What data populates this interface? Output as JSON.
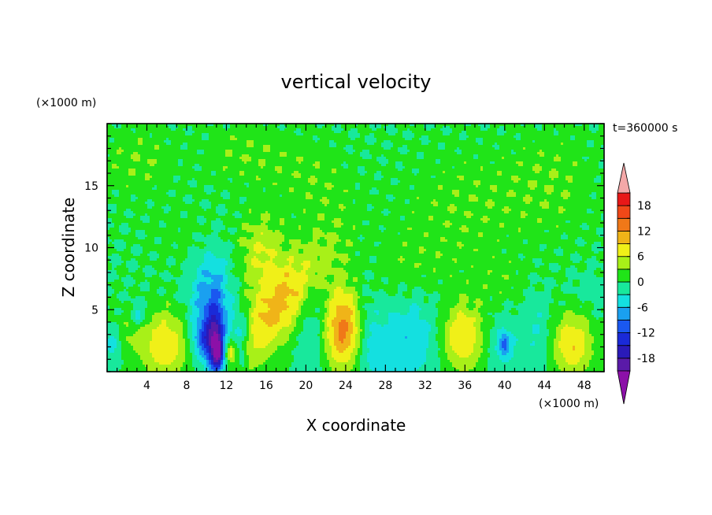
{
  "chart_data": {
    "type": "heatmap",
    "title": "vertical velocity",
    "xlabel": "X coordinate",
    "ylabel": "Z coordinate",
    "x_unit": "(×1000 m)",
    "y_unit": "(×1000 m)",
    "time_label": "t=360000 s",
    "xlim": [
      0,
      50
    ],
    "ylim": [
      0,
      20
    ],
    "x_ticks": [
      4,
      8,
      12,
      16,
      20,
      24,
      28,
      32,
      36,
      40,
      44,
      48
    ],
    "y_ticks": [
      5,
      10,
      15
    ],
    "colorbar": {
      "levels": [
        -21,
        -18,
        -15,
        -12,
        -9,
        -6,
        -3,
        0,
        3,
        6,
        9,
        12,
        15,
        18,
        21
      ],
      "tick_labels": [
        "18",
        "12",
        "6",
        "0",
        "-6",
        "-12",
        "-18"
      ],
      "colors": [
        "#8c10a8",
        "#5a1aa8",
        "#2a1ab8",
        "#1a2ad8",
        "#1a58f0",
        "#1aa0f0",
        "#14e0e0",
        "#18e89c",
        "#20e418",
        "#a8f018",
        "#f0f018",
        "#f0b418",
        "#f07818",
        "#f04818",
        "#e81818",
        "#f4a8a8"
      ],
      "extend_low": true,
      "extend_high": true
    },
    "features": [
      {
        "x": 5.8,
        "z": 2.2,
        "sx": 1.7,
        "sz": 1.9,
        "w": 9
      },
      {
        "x": 17.2,
        "z": 5.2,
        "sx": 2.2,
        "sz": 3.6,
        "w": 10,
        "tilt": 0.8
      },
      {
        "x": 15.5,
        "z": 9.5,
        "sx": 1.6,
        "sz": 2.2,
        "w": 6
      },
      {
        "x": 23.8,
        "z": 3.3,
        "sx": 1.5,
        "sz": 2.3,
        "w": 14
      },
      {
        "x": 35.7,
        "z": 2.7,
        "sx": 1.6,
        "sz": 1.9,
        "w": 10
      },
      {
        "x": 46.8,
        "z": 2.2,
        "sx": 1.4,
        "sz": 1.8,
        "w": 9
      },
      {
        "x": 2.0,
        "z": 3.0,
        "sx": 1.0,
        "sz": 1.2,
        "w": 3
      },
      {
        "x": 10.5,
        "z": 5.0,
        "sx": 1.5,
        "sz": 3.2,
        "w": -9
      },
      {
        "x": 10.9,
        "z": 2.2,
        "sx": 0.6,
        "sz": 1.8,
        "w": -16
      },
      {
        "x": 11.2,
        "z": 1.4,
        "sx": 0.35,
        "sz": 0.8,
        "w": -9
      },
      {
        "x": 9.6,
        "z": 2.6,
        "sx": 0.7,
        "sz": 1.0,
        "w": -6
      },
      {
        "x": 13.5,
        "z": 3.2,
        "sx": 0.7,
        "sz": 1.2,
        "w": -7
      },
      {
        "x": 13.6,
        "z": 1.0,
        "sx": 0.3,
        "sz": 0.5,
        "w": -6
      },
      {
        "x": 12.4,
        "z": 1.6,
        "sx": 0.3,
        "sz": 0.5,
        "w": 7
      },
      {
        "x": 3.2,
        "z": 4.6,
        "sx": 0.6,
        "sz": 0.7,
        "w": -5
      },
      {
        "x": 0.6,
        "z": 2.3,
        "sx": 0.7,
        "sz": 1.0,
        "w": -5
      },
      {
        "x": 20.8,
        "z": 4.0,
        "sx": 1.1,
        "sz": 3.2,
        "w": -4
      },
      {
        "x": 26.0,
        "z": 3.4,
        "sx": 0.9,
        "sz": 3.5,
        "w": -3
      },
      {
        "x": 29.5,
        "z": 2.0,
        "sx": 3.5,
        "sz": 2.2,
        "w": -5
      },
      {
        "x": 31.0,
        "z": 4.5,
        "sx": 1.8,
        "sz": 1.3,
        "w": -2
      },
      {
        "x": 39.8,
        "z": 2.2,
        "sx": 1.2,
        "sz": 1.8,
        "w": -4
      },
      {
        "x": 40.0,
        "z": 2.2,
        "sx": 0.35,
        "sz": 0.6,
        "w": -7
      },
      {
        "x": 43.2,
        "z": 3.4,
        "sx": 1.1,
        "sz": 2.4,
        "w": -3
      },
      {
        "x": 48.5,
        "z": 6.5,
        "sx": 1.3,
        "sz": 1.2,
        "w": -2
      },
      {
        "x": 3.0,
        "z": 17.0,
        "sx": 2.8,
        "sz": 2.2,
        "w": 2.5
      },
      {
        "x": 14.0,
        "z": 17.5,
        "sx": 3.2,
        "sz": 1.9,
        "w": 2.5
      },
      {
        "x": 21.0,
        "z": 15.2,
        "sx": 2.6,
        "sz": 2.6,
        "w": 2.2
      },
      {
        "x": 36.0,
        "z": 13.5,
        "sx": 5.0,
        "sz": 3.5,
        "w": 2.2
      },
      {
        "x": 45.0,
        "z": 15.5,
        "sx": 3.2,
        "sz": 3.2,
        "w": 2.2
      },
      {
        "x": 30.0,
        "z": 8.5,
        "sx": 4.0,
        "sz": 2.2,
        "w": 1.5
      },
      {
        "x": 8.0,
        "z": 11.0,
        "sx": 2.5,
        "sz": 1.5,
        "w": 1.6
      },
      {
        "x": 40.0,
        "z": 7.0,
        "sx": 2.0,
        "sz": 1.5,
        "w": 1.6
      }
    ]
  }
}
